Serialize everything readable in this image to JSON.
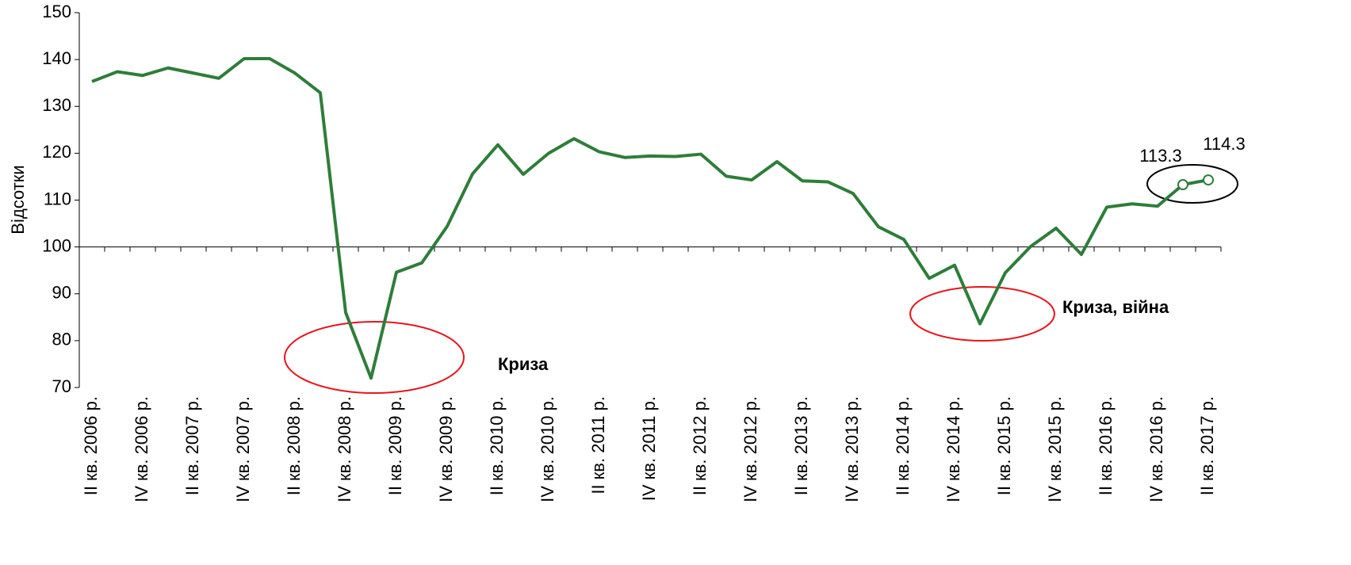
{
  "chart_data": {
    "type": "line",
    "y_label": "Відсотки",
    "annotations": [
      "Криза",
      "Криза, війна"
    ],
    "categories": [
      "II кв. 2006 р.",
      null,
      "IV кв. 2006 р.",
      null,
      "II кв. 2007 р.",
      null,
      "IV кв. 2007 р.",
      null,
      "II кв. 2008 р.",
      null,
      "IV кв. 2008 р.",
      null,
      "II кв. 2009 р.",
      null,
      "IV кв. 2009 р.",
      null,
      "II кв. 2010 р.",
      null,
      "IV кв. 2010 р.",
      null,
      "II кв. 2011 р.",
      null,
      "IV кв. 2011 р.",
      null,
      "II кв. 2012 р.",
      null,
      "IV кв. 2012 р.",
      null,
      "II кв. 2013 р.",
      null,
      "IV кв. 2013 р.",
      null,
      "II кв. 2014 р.",
      null,
      "IV кв. 2014 р.",
      null,
      "II кв. 2015 р.",
      null,
      "IV кв. 2015 р.",
      null,
      "II кв. 2016 р.",
      null,
      "IV кв. 2016 р.",
      null,
      "II кв. 2017 р."
    ],
    "series": [
      {
        "color": "#2e7d3a",
        "values": [
          135.3,
          137.4,
          136.6,
          138.2,
          137.1,
          136.0,
          140.2,
          140.2,
          137.1,
          132.9,
          86.0,
          72.0,
          94.6,
          96.6,
          104.4,
          115.6,
          121.8,
          115.5,
          120.0,
          123.1,
          120.3,
          119.1,
          119.4,
          119.3,
          119.8,
          115.1,
          114.3,
          118.2,
          114.1,
          113.9,
          111.4,
          104.3,
          101.6,
          93.3,
          96.1,
          83.6,
          94.5,
          100.1,
          104.0,
          98.4,
          108.5,
          109.2,
          108.7,
          113.3,
          114.3
        ]
      }
    ],
    "ylim": [
      70,
      150
    ],
    "yticks": [
      70,
      80,
      90,
      100,
      110,
      120,
      130,
      140,
      150
    ],
    "axis_cross": 100,
    "grid": false
  }
}
